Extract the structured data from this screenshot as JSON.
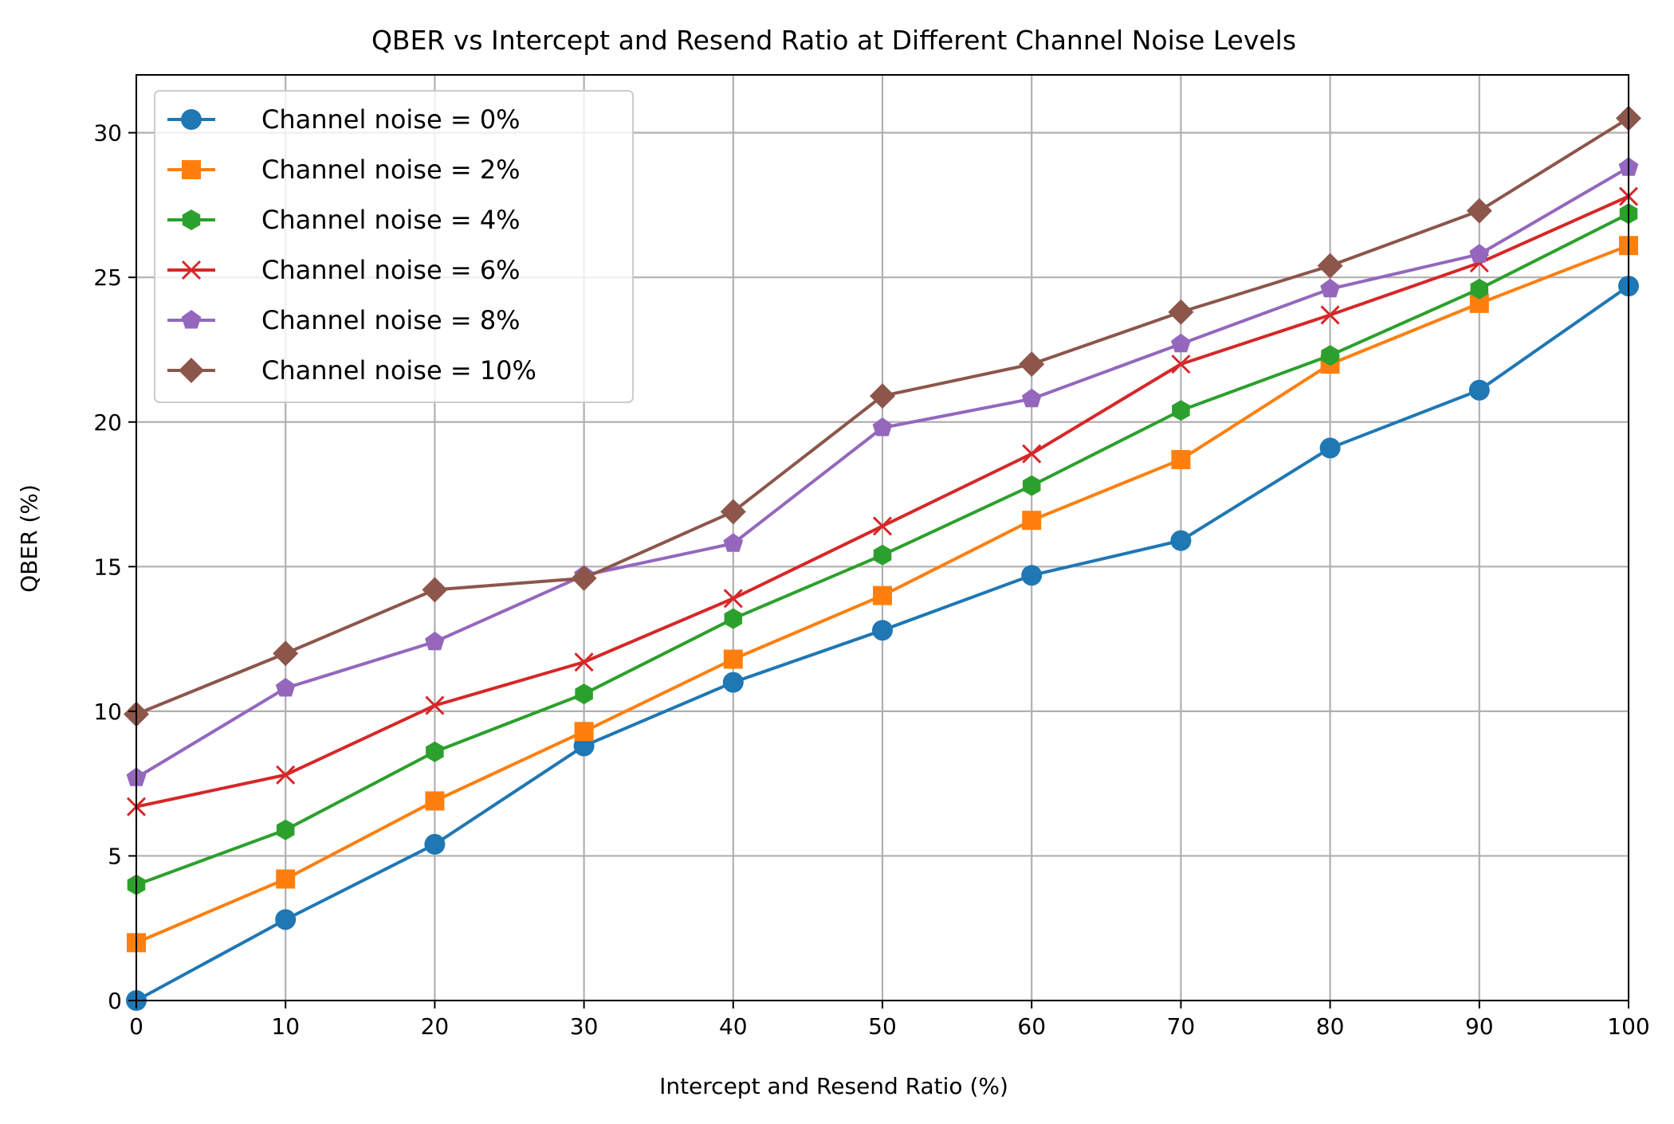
{
  "chart_data": {
    "type": "line",
    "title": "QBER vs Intercept and Resend Ratio at Different Channel Noise Levels",
    "xlabel": "Intercept and Resend Ratio (%)",
    "ylabel": "QBER (%)",
    "xlim": [
      0,
      100
    ],
    "ylim": [
      0,
      32
    ],
    "xticks": [
      0,
      10,
      20,
      30,
      40,
      50,
      60,
      70,
      80,
      90,
      100
    ],
    "yticks": [
      0,
      5,
      10,
      15,
      20,
      25,
      30
    ],
    "grid": true,
    "legend_position": "top-left",
    "x": [
      0,
      10,
      20,
      30,
      40,
      50,
      60,
      70,
      80,
      90,
      100
    ],
    "series": [
      {
        "name": "Channel noise = 0%",
        "color": "#1f77b4",
        "marker": "circle",
        "values": [
          0.0,
          2.8,
          5.4,
          8.8,
          11.0,
          12.8,
          14.7,
          15.9,
          19.1,
          21.1,
          24.7
        ]
      },
      {
        "name": "Channel noise = 2%",
        "color": "#ff7f0e",
        "marker": "square",
        "values": [
          2.0,
          4.2,
          6.9,
          9.3,
          11.8,
          14.0,
          16.6,
          18.7,
          22.0,
          24.1,
          26.1
        ]
      },
      {
        "name": "Channel noise = 4%",
        "color": "#2ca02c",
        "marker": "hexagon",
        "values": [
          4.0,
          5.9,
          8.6,
          10.6,
          13.2,
          15.4,
          17.8,
          20.4,
          22.3,
          24.6,
          27.2
        ]
      },
      {
        "name": "Channel noise = 6%",
        "color": "#d62728",
        "marker": "x",
        "values": [
          6.7,
          7.8,
          10.2,
          11.7,
          13.9,
          16.4,
          18.9,
          22.0,
          23.7,
          25.5,
          27.8
        ]
      },
      {
        "name": "Channel noise = 8%",
        "color": "#9467bd",
        "marker": "pentagon",
        "values": [
          7.7,
          10.8,
          12.4,
          14.7,
          15.8,
          19.8,
          20.8,
          22.7,
          24.6,
          25.8,
          28.8
        ]
      },
      {
        "name": "Channel noise = 10%",
        "color": "#8c564b",
        "marker": "diamond",
        "values": [
          9.9,
          12.0,
          14.2,
          14.6,
          16.9,
          20.9,
          22.0,
          23.8,
          25.4,
          27.3,
          30.5
        ]
      }
    ]
  }
}
